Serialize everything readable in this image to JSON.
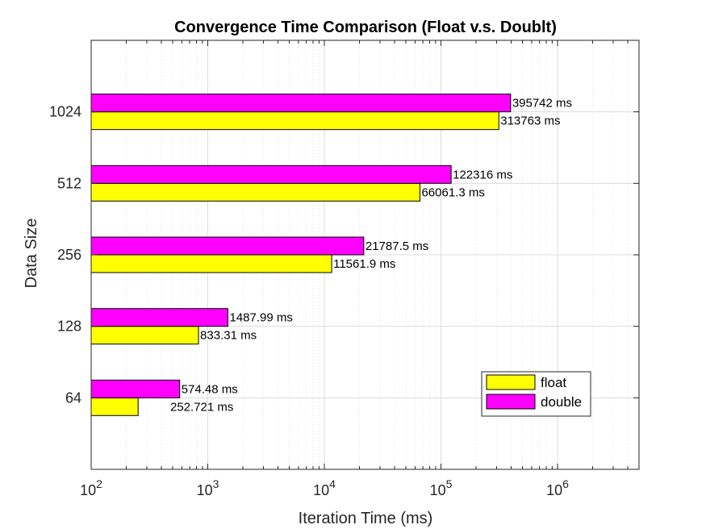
{
  "chart_data": {
    "type": "bar",
    "orientation": "horizontal",
    "title": "Convergence Time Comparison (Float v.s. Doublt)",
    "xlabel": "Iteration Time (ms)",
    "ylabel": "Data Size",
    "x_scale": "log",
    "xlim": [
      100,
      5000000
    ],
    "x_ticks": [
      {
        "value": 100,
        "base": "10",
        "exp": "2"
      },
      {
        "value": 1000,
        "base": "10",
        "exp": "3"
      },
      {
        "value": 10000,
        "base": "10",
        "exp": "4"
      },
      {
        "value": 100000,
        "base": "10",
        "exp": "5"
      },
      {
        "value": 1000000,
        "base": "10",
        "exp": "6"
      }
    ],
    "categories": [
      "64",
      "128",
      "256",
      "512",
      "1024"
    ],
    "grid": true,
    "legend_position": "bottom-right",
    "series": [
      {
        "name": "float",
        "color": "#ffff00",
        "values": [
          252.721,
          833.31,
          11561.9,
          66061.3,
          313763
        ],
        "labels": [
          "252.721 ms",
          "833.31 ms",
          "11561.9 ms",
          "66061.3 ms",
          "313763 ms"
        ]
      },
      {
        "name": "double",
        "color": "#ff00ff",
        "values": [
          574.48,
          1487.99,
          21787.5,
          122316,
          395742
        ],
        "labels": [
          "574.48 ms",
          "1487.99 ms",
          "21787.5 ms",
          "122316 ms",
          "395742 ms"
        ]
      }
    ]
  }
}
